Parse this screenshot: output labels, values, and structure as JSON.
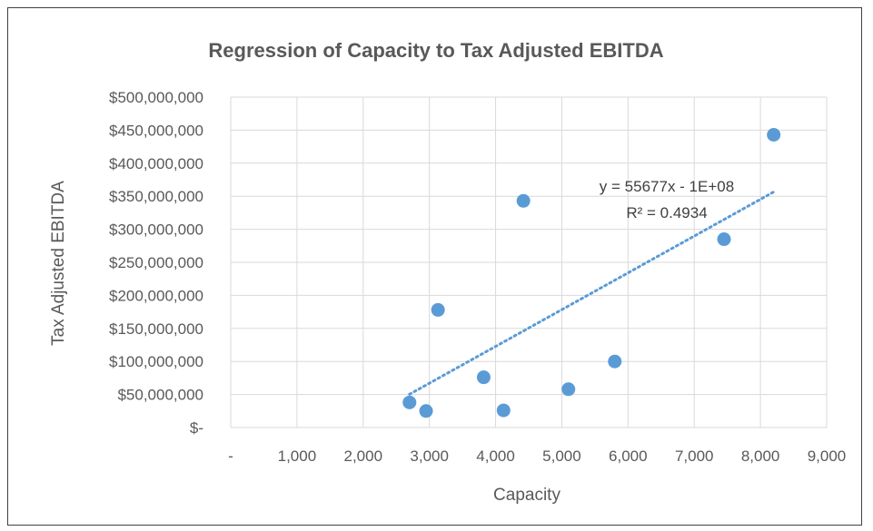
{
  "chart_data": {
    "type": "scatter",
    "title": "Regression of Capacity to Tax Adjusted EBITDA",
    "xlabel": "Capacity",
    "ylabel": "Tax Adjusted EBITDA",
    "xlim": [
      0,
      9000
    ],
    "ylim": [
      0,
      500000000
    ],
    "x_ticks": [
      0,
      1000,
      2000,
      3000,
      4000,
      5000,
      6000,
      7000,
      8000,
      9000
    ],
    "x_tick_labels": [
      "-",
      "1,000",
      "2,000",
      "3,000",
      "4,000",
      "5,000",
      "6,000",
      "7,000",
      "8,000",
      "9,000"
    ],
    "y_ticks": [
      0,
      50000000,
      100000000,
      150000000,
      200000000,
      250000000,
      300000000,
      350000000,
      400000000,
      450000000,
      500000000
    ],
    "y_tick_labels": [
      "$-",
      "$50,000,000",
      "$100,000,000",
      "$150,000,000",
      "$200,000,000",
      "$250,000,000",
      "$300,000,000",
      "$350,000,000",
      "$400,000,000",
      "$450,000,000",
      "$500,000,000"
    ],
    "grid": true,
    "series": [
      {
        "points": [
          {
            "x": 2700,
            "y": 38000000
          },
          {
            "x": 2950,
            "y": 25000000
          },
          {
            "x": 3130,
            "y": 178000000
          },
          {
            "x": 3820,
            "y": 76000000
          },
          {
            "x": 4120,
            "y": 26000000
          },
          {
            "x": 4420,
            "y": 343000000
          },
          {
            "x": 5100,
            "y": 58000000
          },
          {
            "x": 5800,
            "y": 100000000
          },
          {
            "x": 7450,
            "y": 285000000
          },
          {
            "x": 8200,
            "y": 443000000
          }
        ],
        "color": "#5b9bd5"
      }
    ],
    "trendline": {
      "type": "linear",
      "slope": 55677,
      "intercept": -100000000,
      "x_range": [
        2700,
        8200
      ],
      "equation_label": "y = 55677x - 1E+08",
      "r2_label": "R² = 0.4934",
      "color": "#5b9bd5"
    }
  }
}
